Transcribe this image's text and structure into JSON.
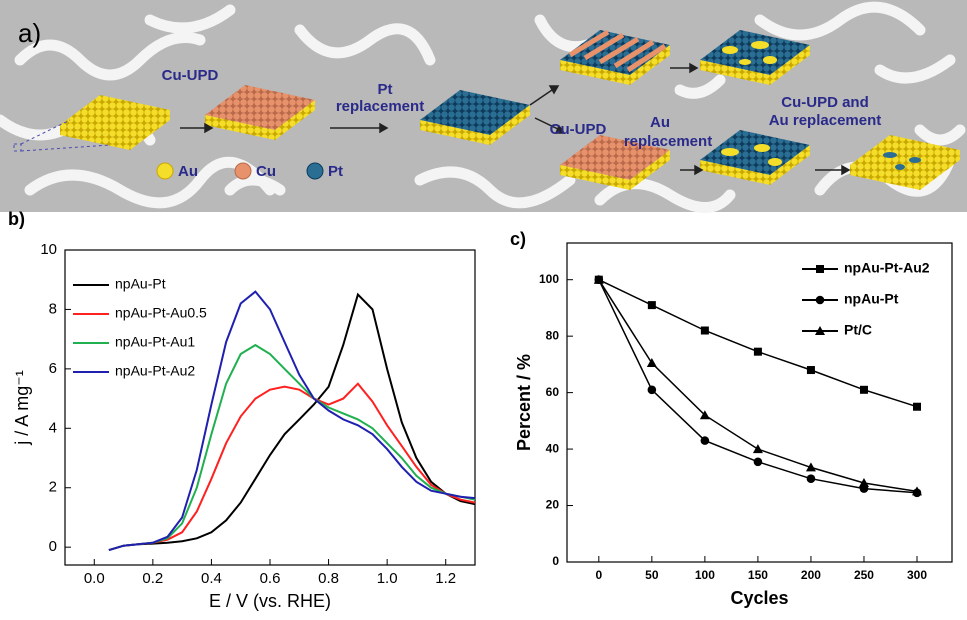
{
  "diagram": {
    "label": "a)",
    "texts": [
      "Cu-UPD",
      "Pt",
      "replacement",
      "Cu-UPD",
      "Au",
      "replacement",
      "Cu-UPD and",
      "Au replacement"
    ],
    "legend": [
      "Au",
      "Cu",
      "Pt"
    ]
  },
  "chart_data": [
    {
      "type": "line",
      "label": "b)",
      "xlabel": "E / V (vs. RHE)",
      "ylabel": "j / A mg⁻¹",
      "legend": "upper left",
      "x": [
        0.05,
        0.1,
        0.15,
        0.2,
        0.25,
        0.3,
        0.35,
        0.4,
        0.45,
        0.5,
        0.55,
        0.6,
        0.65,
        0.7,
        0.75,
        0.8,
        0.85,
        0.9,
        0.95,
        1.0,
        1.05,
        1.1,
        1.15,
        1.2,
        1.25,
        1.3
      ],
      "series": [
        {
          "name": "npAu-Pt",
          "color": "#000000",
          "values": [
            -0.1,
            0.05,
            0.1,
            0.12,
            0.15,
            0.2,
            0.3,
            0.5,
            0.9,
            1.5,
            2.3,
            3.1,
            3.8,
            4.3,
            4.8,
            5.4,
            6.8,
            8.5,
            8.0,
            6.0,
            4.2,
            3.0,
            2.2,
            1.8,
            1.55,
            1.45
          ]
        },
        {
          "name": "npAu-Pt-Au0.5",
          "color": "#ff2020",
          "values": [
            -0.1,
            0.05,
            0.1,
            0.15,
            0.25,
            0.5,
            1.2,
            2.3,
            3.5,
            4.4,
            5.0,
            5.3,
            5.4,
            5.3,
            5.0,
            4.8,
            5.0,
            5.5,
            4.9,
            4.1,
            3.4,
            2.7,
            2.1,
            1.8,
            1.6,
            1.5
          ]
        },
        {
          "name": "npAu-Pt-Au1",
          "color": "#20b050",
          "values": [
            -0.1,
            0.05,
            0.1,
            0.15,
            0.3,
            0.8,
            2.0,
            3.8,
            5.5,
            6.5,
            6.8,
            6.5,
            6.0,
            5.5,
            5.0,
            4.7,
            4.5,
            4.3,
            4.0,
            3.5,
            3.0,
            2.4,
            2.0,
            1.8,
            1.7,
            1.6
          ]
        },
        {
          "name": "npAu-Pt-Au2",
          "color": "#2020b0",
          "values": [
            -0.1,
            0.05,
            0.1,
            0.15,
            0.35,
            1.0,
            2.6,
            4.8,
            6.9,
            8.2,
            8.6,
            8.0,
            6.9,
            5.8,
            5.0,
            4.6,
            4.3,
            4.1,
            3.8,
            3.3,
            2.7,
            2.2,
            1.9,
            1.8,
            1.7,
            1.65
          ]
        }
      ],
      "xlim": [
        -0.1,
        1.3
      ],
      "ylim": [
        -0.6,
        10
      ],
      "xticks": [
        {
          "value": 0,
          "label": "0.0"
        },
        0.2,
        0.4,
        0.6,
        0.8,
        {
          "value": 1,
          "label": "1.0"
        },
        1.2
      ],
      "yticks": [
        0,
        2,
        4,
        6,
        8,
        10
      ]
    },
    {
      "type": "line",
      "label": "c)",
      "xlabel": "Cycles",
      "ylabel": "Percent / %",
      "legend": "upper right",
      "x": [
        0,
        50,
        100,
        150,
        200,
        250,
        300
      ],
      "series": [
        {
          "name": "npAu-Pt-Au2",
          "color": "#000000",
          "marker": "square",
          "values": [
            100,
            91,
            82,
            74.5,
            68,
            61,
            55
          ]
        },
        {
          "name": "npAu-Pt",
          "color": "#000000",
          "marker": "circle",
          "values": [
            100,
            61,
            43,
            35.5,
            29.5,
            26,
            24.5
          ]
        },
        {
          "name": "Pt/C",
          "color": "#000000",
          "marker": "triangle",
          "values": [
            100,
            70.5,
            52,
            40,
            33.5,
            28,
            25
          ]
        }
      ],
      "xlim": [
        -30,
        333
      ],
      "ylim": [
        0,
        113
      ],
      "xticks": [
        0,
        50,
        100,
        150,
        200,
        250,
        300
      ],
      "yticks": [
        0,
        20,
        40,
        60,
        80,
        100
      ]
    }
  ]
}
